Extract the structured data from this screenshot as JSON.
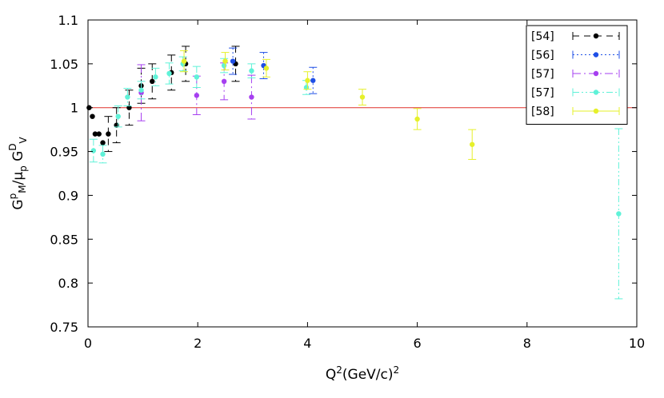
{
  "chart_data": {
    "type": "scatter",
    "title": "",
    "xlabel": {
      "base": "Q",
      "sup1": "2",
      "mid": "(GeV/c)",
      "sup2": "2"
    },
    "ylabel": {
      "p1": "G",
      "sup1": "p",
      "sub1": "M",
      "p2": "/μ",
      "sub2": "p",
      "p3": " G",
      "sup3": "D",
      "sub3": "V"
    },
    "xlim": [
      0,
      10
    ],
    "ylim": [
      0.75,
      1.1
    ],
    "xticks": [
      0,
      2,
      4,
      6,
      8,
      10
    ],
    "yticks": [
      0.75,
      0.8,
      0.85,
      0.9,
      0.95,
      1,
      1.05,
      1.1
    ],
    "xtick_labels": [
      "0",
      "2",
      "4",
      "6",
      "8",
      "10"
    ],
    "ytick_labels": [
      "0.75",
      "0.8",
      "0.85",
      "0.9",
      "0.95",
      "1",
      "1.05",
      "1.1"
    ],
    "grid": false,
    "legend_position": "top-right",
    "reference_line": {
      "y": 1,
      "color": "#e0302a"
    },
    "series": [
      {
        "name": "[54]",
        "color": "#000000",
        "dash": "8,6",
        "points": [
          {
            "x": 0.02,
            "y": 1.0,
            "err": 0.0
          },
          {
            "x": 0.08,
            "y": 0.99,
            "err": 0.0
          },
          {
            "x": 0.13,
            "y": 0.97,
            "err": 0.0
          },
          {
            "x": 0.2,
            "y": 0.97,
            "err": 0.0
          },
          {
            "x": 0.27,
            "y": 0.96,
            "err": 0.0
          },
          {
            "x": 0.37,
            "y": 0.97,
            "err": 0.02
          },
          {
            "x": 0.52,
            "y": 0.98,
            "err": 0.02
          },
          {
            "x": 0.75,
            "y": 1.0,
            "err": 0.02
          },
          {
            "x": 0.97,
            "y": 1.025,
            "err": 0.02
          },
          {
            "x": 1.17,
            "y": 1.03,
            "err": 0.02
          },
          {
            "x": 1.52,
            "y": 1.04,
            "err": 0.02
          },
          {
            "x": 1.78,
            "y": 1.05,
            "err": 0.02
          },
          {
            "x": 2.69,
            "y": 1.05,
            "err": 0.02
          }
        ]
      },
      {
        "name": "[56]",
        "color": "#1f4fe6",
        "dash": "2,3",
        "points": [
          {
            "x": 2.64,
            "y": 1.053,
            "err": 0.015
          },
          {
            "x": 3.2,
            "y": 1.048,
            "err": 0.015
          },
          {
            "x": 4.1,
            "y": 1.031,
            "err": 0.015
          }
        ]
      },
      {
        "name": "[57]",
        "color": "#a63ff0",
        "dash": "10,4,2,4",
        "points": [
          {
            "x": 0.97,
            "y": 1.017,
            "err": 0.032
          },
          {
            "x": 1.98,
            "y": 1.014,
            "err": 0.022
          },
          {
            "x": 2.48,
            "y": 1.03,
            "err": 0.021
          },
          {
            "x": 2.98,
            "y": 1.012,
            "err": 0.025
          }
        ]
      },
      {
        "name": "[57]",
        "color": "#5ff2d8",
        "dash": "8,3,2,3,2,3",
        "points": [
          {
            "x": 0.1,
            "y": 0.951,
            "err": 0.013
          },
          {
            "x": 0.27,
            "y": 0.947,
            "err": 0.01
          },
          {
            "x": 0.55,
            "y": 0.99,
            "err": 0.012
          },
          {
            "x": 0.72,
            "y": 1.012,
            "err": 0.01
          },
          {
            "x": 0.97,
            "y": 1.02,
            "err": 0.01
          },
          {
            "x": 1.23,
            "y": 1.035,
            "err": 0.01
          },
          {
            "x": 1.48,
            "y": 1.039,
            "err": 0.012
          },
          {
            "x": 1.73,
            "y": 1.05,
            "err": 0.008
          },
          {
            "x": 1.98,
            "y": 1.035,
            "err": 0.012
          },
          {
            "x": 2.48,
            "y": 1.048,
            "err": 0.008
          },
          {
            "x": 2.98,
            "y": 1.042,
            "err": 0.008
          },
          {
            "x": 3.98,
            "y": 1.023,
            "err": 0.008
          },
          {
            "x": 9.67,
            "y": 0.879,
            "err": 0.097
          }
        ]
      },
      {
        "name": "[58]",
        "color": "#e6f02a",
        "dash": "",
        "points": [
          {
            "x": 1.75,
            "y": 1.053,
            "err": 0.012
          },
          {
            "x": 2.5,
            "y": 1.053,
            "err": 0.01
          },
          {
            "x": 3.25,
            "y": 1.045,
            "err": 0.01
          },
          {
            "x": 4.0,
            "y": 1.031,
            "err": 0.01
          },
          {
            "x": 5.0,
            "y": 1.012,
            "err": 0.009
          },
          {
            "x": 6.0,
            "y": 0.987,
            "err": 0.012
          },
          {
            "x": 7.0,
            "y": 0.958,
            "err": 0.017
          }
        ]
      }
    ]
  }
}
